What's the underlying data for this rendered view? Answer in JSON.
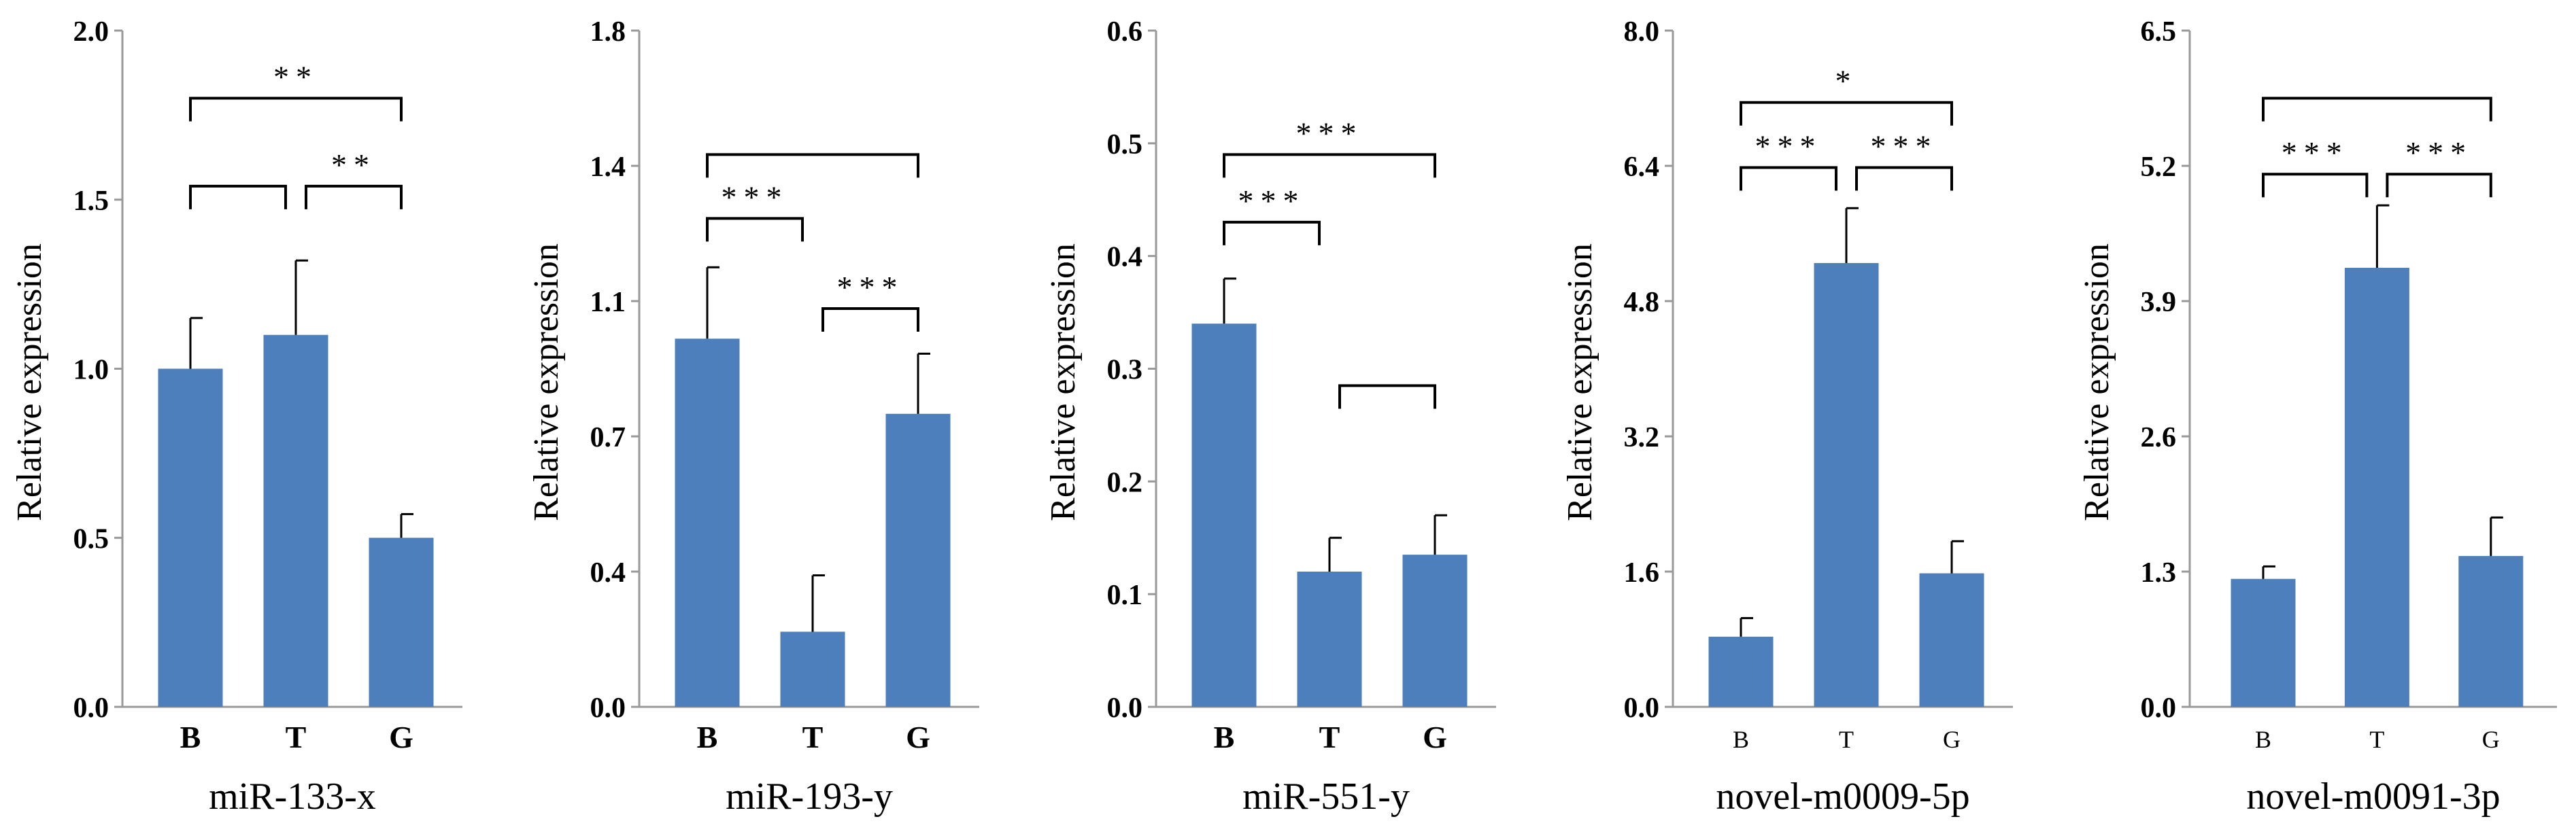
{
  "chart_data": [
    {
      "type": "bar",
      "title": "miR-133-x",
      "xlabel": "miR-133-x",
      "ylabel": "Relative expression",
      "ylim": [
        0,
        2.0
      ],
      "yticks": [
        "0.0",
        "0.5",
        "1.0",
        "1.5",
        "2.0"
      ],
      "tick_values": [
        0,
        0.5,
        1.0,
        1.5,
        2.0
      ],
      "categories": [
        "B",
        "T",
        "G"
      ],
      "values": [
        1.0,
        1.1,
        0.5
      ],
      "errors": [
        0.15,
        0.22,
        0.07
      ],
      "significance": [
        {
          "from": 0,
          "to": 2,
          "y": 1.8,
          "label": "**"
        },
        {
          "from": 0,
          "to": 1,
          "y": 1.54,
          "label": ""
        },
        {
          "from": 1,
          "to": 2,
          "y": 1.54,
          "label": "**"
        }
      ]
    },
    {
      "type": "bar",
      "title": "miR-193-y",
      "xlabel": "miR-193-y",
      "ylabel": "Relative expression",
      "ylim": [
        0,
        1.8
      ],
      "yticks": [
        "0.0",
        "0.4",
        "0.7",
        "1.1",
        "1.4",
        "1.8"
      ],
      "tick_values": [
        0,
        0.36,
        0.72,
        1.08,
        1.44,
        1.8
      ],
      "categories": [
        "B",
        "T",
        "G"
      ],
      "values": [
        0.98,
        0.2,
        0.78
      ],
      "errors": [
        0.19,
        0.15,
        0.16
      ],
      "significance": [
        {
          "from": 0,
          "to": 2,
          "y": 1.47,
          "label": ""
        },
        {
          "from": 0,
          "to": 1,
          "y": 1.3,
          "label": "***"
        },
        {
          "from": 1,
          "to": 2,
          "y": 1.06,
          "label": "***"
        }
      ]
    },
    {
      "type": "bar",
      "title": "miR-551-y",
      "xlabel": "miR-551-y",
      "ylabel": "Relative expression",
      "ylim": [
        0,
        0.6
      ],
      "yticks": [
        "0.0",
        "0.1",
        "0.2",
        "0.3",
        "0.4",
        "0.5",
        "0.6"
      ],
      "tick_values": [
        0,
        0.1,
        0.2,
        0.3,
        0.4,
        0.5,
        0.6
      ],
      "categories": [
        "B",
        "T",
        "G"
      ],
      "values": [
        0.34,
        0.12,
        0.135
      ],
      "errors": [
        0.04,
        0.03,
        0.035
      ],
      "significance": [
        {
          "from": 0,
          "to": 2,
          "y": 0.49,
          "label": "***"
        },
        {
          "from": 0,
          "to": 1,
          "y": 0.43,
          "label": "***"
        },
        {
          "from": 1,
          "to": 2,
          "y": 0.285,
          "label": ""
        }
      ]
    },
    {
      "type": "bar",
      "title": "novel-m0009-5p",
      "xlabel": "novel-m0009-5p",
      "ylabel": "Relative expression",
      "ylim": [
        0,
        8.0
      ],
      "yticks": [
        "0.0",
        "1.6",
        "3.2",
        "4.8",
        "6.4",
        "8.0"
      ],
      "tick_values": [
        0,
        1.6,
        3.2,
        4.8,
        6.4,
        8.0
      ],
      "categories": [
        "B",
        "T",
        "G"
      ],
      "values": [
        0.83,
        5.25,
        1.58
      ],
      "errors": [
        0.22,
        0.65,
        0.38
      ],
      "significance": [
        {
          "from": 0,
          "to": 2,
          "y": 7.15,
          "label": "*"
        },
        {
          "from": 0,
          "to": 1,
          "y": 6.38,
          "label": "***"
        },
        {
          "from": 1,
          "to": 2,
          "y": 6.38,
          "label": "***"
        }
      ]
    },
    {
      "type": "bar",
      "title": "novel-m0091-3p",
      "xlabel": "novel-m0091-3p",
      "ylabel": "Relative expression",
      "ylim": [
        0,
        6.5
      ],
      "yticks": [
        "0.0",
        "1.3",
        "2.6",
        "3.9",
        "5.2",
        "6.5"
      ],
      "tick_values": [
        0,
        1.3,
        2.6,
        3.9,
        5.2,
        6.5
      ],
      "categories": [
        "B",
        "T",
        "G"
      ],
      "values": [
        1.23,
        4.22,
        1.45
      ],
      "errors": [
        0.12,
        0.6,
        0.37
      ],
      "significance": [
        {
          "from": 0,
          "to": 2,
          "y": 5.85,
          "label": ""
        },
        {
          "from": 0,
          "to": 1,
          "y": 5.12,
          "label": "***"
        },
        {
          "from": 1,
          "to": 2,
          "y": 5.12,
          "label": "***"
        }
      ]
    }
  ],
  "colors": {
    "bar": "#4d7fbd",
    "axis": "#999999",
    "ink": "#000000"
  }
}
